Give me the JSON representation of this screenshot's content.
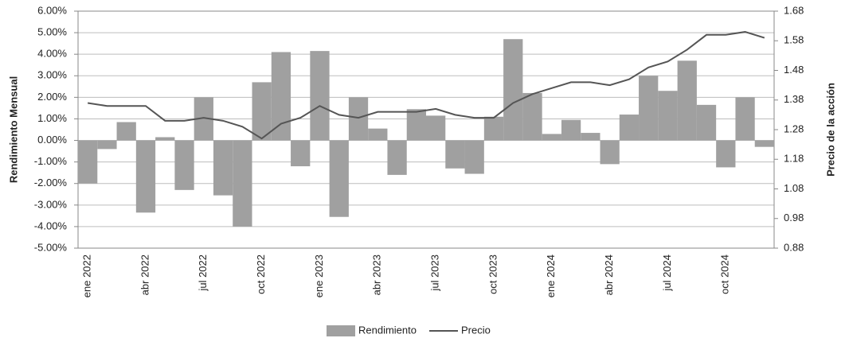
{
  "chart_data": {
    "type": "bar-line",
    "y_label": "Rendimiento Mensual",
    "y2_label": "Precio de la acción",
    "categories": [
      "ene 2022",
      null,
      null,
      "abr 2022",
      null,
      null,
      "jul 2022",
      null,
      null,
      "oct 2022",
      null,
      null,
      "ene 2023",
      null,
      null,
      "abr 2023",
      null,
      null,
      "jul 2023",
      null,
      null,
      "oct 2023",
      null,
      null,
      "ene 2024",
      null,
      null,
      "abr 2024",
      null,
      null,
      "jul 2024",
      null,
      null,
      "oct 2024",
      null,
      null
    ],
    "series": [
      {
        "name": "Rendimiento",
        "type": "bar",
        "color": "#a0a0a0",
        "values": [
          -2.0,
          -0.4,
          0.85,
          -3.35,
          0.15,
          -2.3,
          2.0,
          -2.55,
          -4.0,
          2.7,
          4.1,
          -1.2,
          4.15,
          -3.55,
          2.0,
          0.55,
          -1.6,
          1.45,
          1.15,
          -1.3,
          -1.55,
          1.1,
          4.7,
          2.2,
          0.3,
          0.95,
          0.35,
          -1.1,
          1.2,
          3.0,
          2.3,
          3.7,
          1.65,
          -1.25,
          2.0,
          -0.3
        ]
      },
      {
        "name": "Precio",
        "type": "line",
        "axis": "y2",
        "color": "#555555",
        "values": [
          1.37,
          1.36,
          1.36,
          1.36,
          1.31,
          1.31,
          1.32,
          1.31,
          1.29,
          1.25,
          1.3,
          1.32,
          1.36,
          1.33,
          1.32,
          1.34,
          1.34,
          1.34,
          1.35,
          1.33,
          1.32,
          1.32,
          1.37,
          1.4,
          1.42,
          1.44,
          1.44,
          1.43,
          1.45,
          1.49,
          1.51,
          1.55,
          1.6,
          1.6,
          1.61,
          1.59
        ]
      }
    ],
    "ylim": [
      -5,
      6
    ],
    "yticks": [
      {
        "value": -5,
        "label": "-5.00%"
      },
      {
        "value": -4,
        "label": "-4.00%"
      },
      {
        "value": -3,
        "label": "-3.00%"
      },
      {
        "value": -2,
        "label": "-2.00%"
      },
      {
        "value": -1,
        "label": "-1.00%"
      },
      {
        "value": 0,
        "label": "0.00%"
      },
      {
        "value": 1,
        "label": "1.00%"
      },
      {
        "value": 2,
        "label": "2.00%"
      },
      {
        "value": 3,
        "label": "3.00%"
      },
      {
        "value": 4,
        "label": "4.00%"
      },
      {
        "value": 5,
        "label": "5.00%"
      },
      {
        "value": 6,
        "label": "6.00%"
      }
    ],
    "y2lim": [
      0.88,
      1.68
    ],
    "y2ticks": [
      0.88,
      0.98,
      1.08,
      1.18,
      1.28,
      1.38,
      1.48,
      1.58,
      1.68
    ],
    "grid": true,
    "legend": "bottom"
  }
}
